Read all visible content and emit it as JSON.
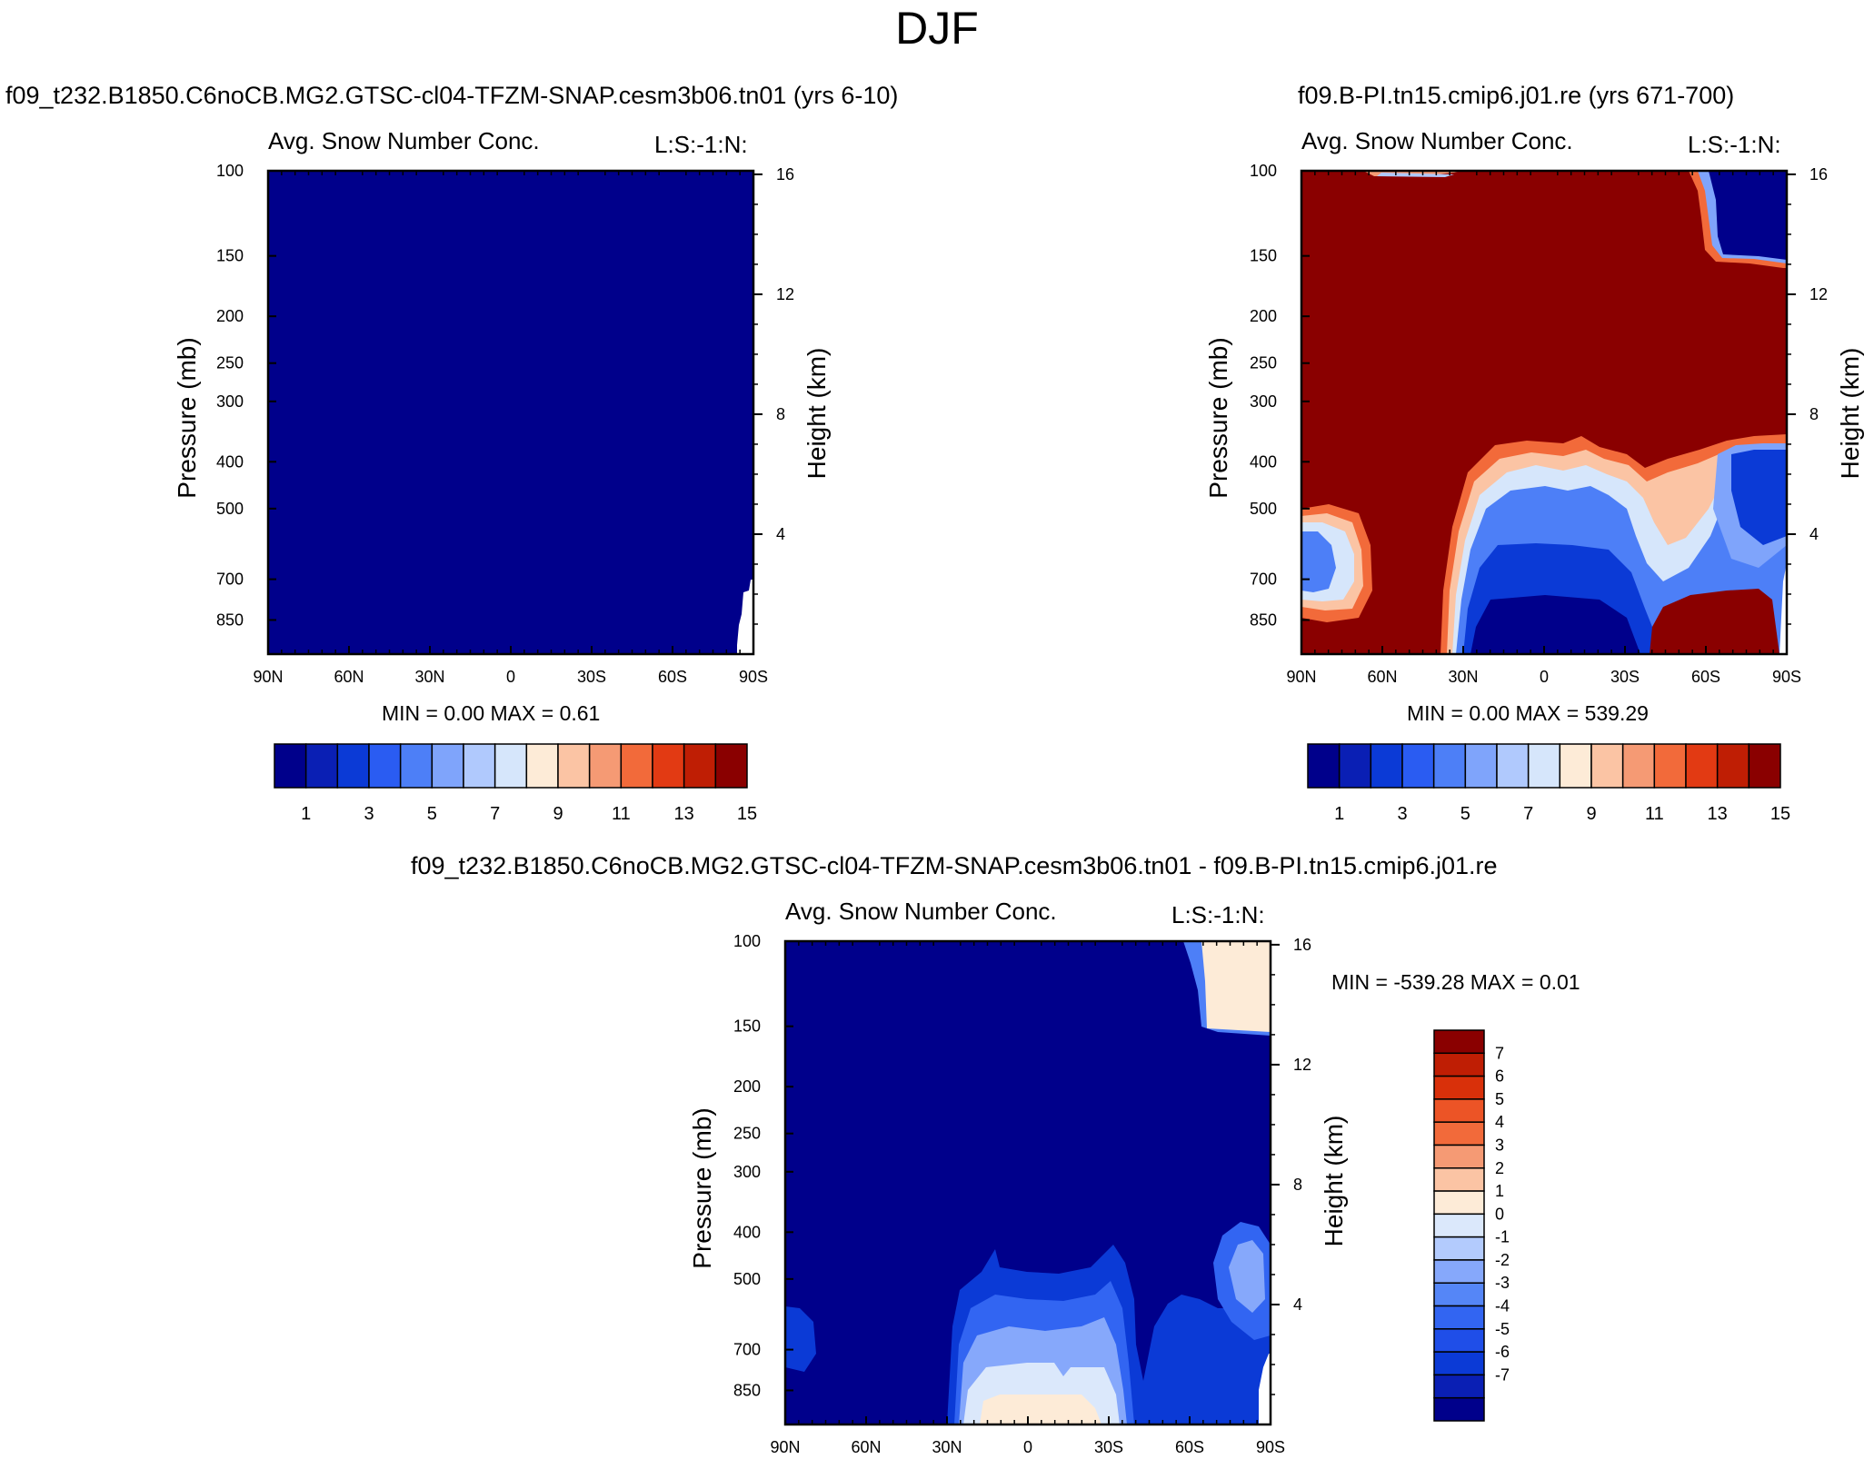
{
  "page": {
    "title": "DJF"
  },
  "colors": {
    "scale15": [
      "#00008b",
      "#0a1fb4",
      "#0b3ad6",
      "#2a5cf2",
      "#4d7ff7",
      "#7fa4fb",
      "#b0c9fd",
      "#d6e6fb",
      "#fdebd7",
      "#fbc4a4",
      "#f59a74",
      "#f26a3a",
      "#e23a13",
      "#bf1e04",
      "#8a0000"
    ],
    "scale15_ticks": [
      "1",
      "3",
      "5",
      "7",
      "9",
      "11",
      "13",
      "15"
    ],
    "diff_colors": [
      "#00008b",
      "#0a1fb4",
      "#0b3ad6",
      "#1f4ee8",
      "#3265f2",
      "#5586f7",
      "#86a8fb",
      "#b3cbfd",
      "#dbe8fb",
      "#fdebd7",
      "#fbc4a4",
      "#f59a74",
      "#f26a3a",
      "#ec5426",
      "#d9300a",
      "#bf1e04",
      "#8a0000"
    ],
    "diff_labels": [
      "7",
      "6",
      "5",
      "4",
      "3",
      "2",
      "1",
      "0",
      "-1",
      "-2",
      "-3",
      "-4",
      "-5",
      "-6",
      "-7"
    ]
  },
  "panels": [
    {
      "id": "left",
      "case_title": "f09_t232.B1850.C6noCB.MG2.GTSC-cl04-TFZM-SNAP.cesm3b06.tn01 (yrs 6-10)",
      "variable": "Avg. Snow Number Conc.",
      "code": "L:S:-1:N:",
      "minmax": "MIN =   0.00  MAX =   0.61"
    },
    {
      "id": "right",
      "case_title": "f09.B-PI.tn15.cmip6.j01.re (yrs 671-700)",
      "variable": "Avg. Snow Number Conc.",
      "code": "L:S:-1:N:",
      "minmax": "MIN =   0.00  MAX = 539.29"
    },
    {
      "id": "diff",
      "case_title": "f09_t232.B1850.C6noCB.MG2.GTSC-cl04-TFZM-SNAP.cesm3b06.tn01 - f09.B-PI.tn15.cmip6.j01.re",
      "variable": "Avg. Snow Number Conc.",
      "code": "L:S:-1:N:",
      "minmax": "MIN = -539.28  MAX =   0.01"
    }
  ],
  "chart_data": [
    {
      "type": "heatmap",
      "title": "f09_t232.B1850.C6noCB.MG2.GTSC-cl04-TFZM-SNAP.cesm3b06.tn01 (yrs 6-10)",
      "subtitle": "Avg. Snow Number Conc.",
      "xlabel": "",
      "ylabel": "Pressure (mb)",
      "y2label": "Height (km)",
      "x_ticks": [
        "90N",
        "60N",
        "30N",
        "0",
        "30S",
        "60S",
        "90S"
      ],
      "y_ticks": [
        "100",
        "150",
        "200",
        "250",
        "300",
        "400",
        "500",
        "700",
        "850"
      ],
      "y2_ticks": [
        "16",
        "12",
        "8",
        "4"
      ],
      "min": 0.0,
      "max": 0.61,
      "levels": [
        1,
        2,
        3,
        4,
        5,
        6,
        7,
        8,
        9,
        10,
        11,
        12,
        13,
        14,
        15
      ]
    },
    {
      "type": "heatmap",
      "title": "f09.B-PI.tn15.cmip6.j01.re (yrs 671-700)",
      "subtitle": "Avg. Snow Number Conc.",
      "xlabel": "",
      "ylabel": "Pressure (mb)",
      "y2label": "Height (km)",
      "x_ticks": [
        "90N",
        "60N",
        "30N",
        "0",
        "30S",
        "60S",
        "90S"
      ],
      "y_ticks": [
        "100",
        "150",
        "200",
        "250",
        "300",
        "400",
        "500",
        "700",
        "850"
      ],
      "y2_ticks": [
        "16",
        "12",
        "8",
        "4"
      ],
      "min": 0.0,
      "max": 539.29,
      "levels": [
        1,
        2,
        3,
        4,
        5,
        6,
        7,
        8,
        9,
        10,
        11,
        12,
        13,
        14,
        15
      ]
    },
    {
      "type": "heatmap",
      "title": "f09_t232.B1850.C6noCB.MG2.GTSC-cl04-TFZM-SNAP.cesm3b06.tn01 - f09.B-PI.tn15.cmip6.j01.re",
      "subtitle": "Avg. Snow Number Conc.",
      "xlabel": "",
      "ylabel": "Pressure (mb)",
      "y2label": "Height (km)",
      "x_ticks": [
        "90N",
        "60N",
        "30N",
        "0",
        "30S",
        "60S",
        "90S"
      ],
      "y_ticks": [
        "100",
        "150",
        "200",
        "250",
        "300",
        "400",
        "500",
        "700",
        "850"
      ],
      "y2_ticks": [
        "16",
        "12",
        "8",
        "4"
      ],
      "min": -539.28,
      "max": 0.01,
      "levels": [
        -7,
        -6,
        -5,
        -4,
        -3,
        -2,
        -1,
        0,
        1,
        2,
        3,
        4,
        5,
        6,
        7
      ]
    }
  ]
}
